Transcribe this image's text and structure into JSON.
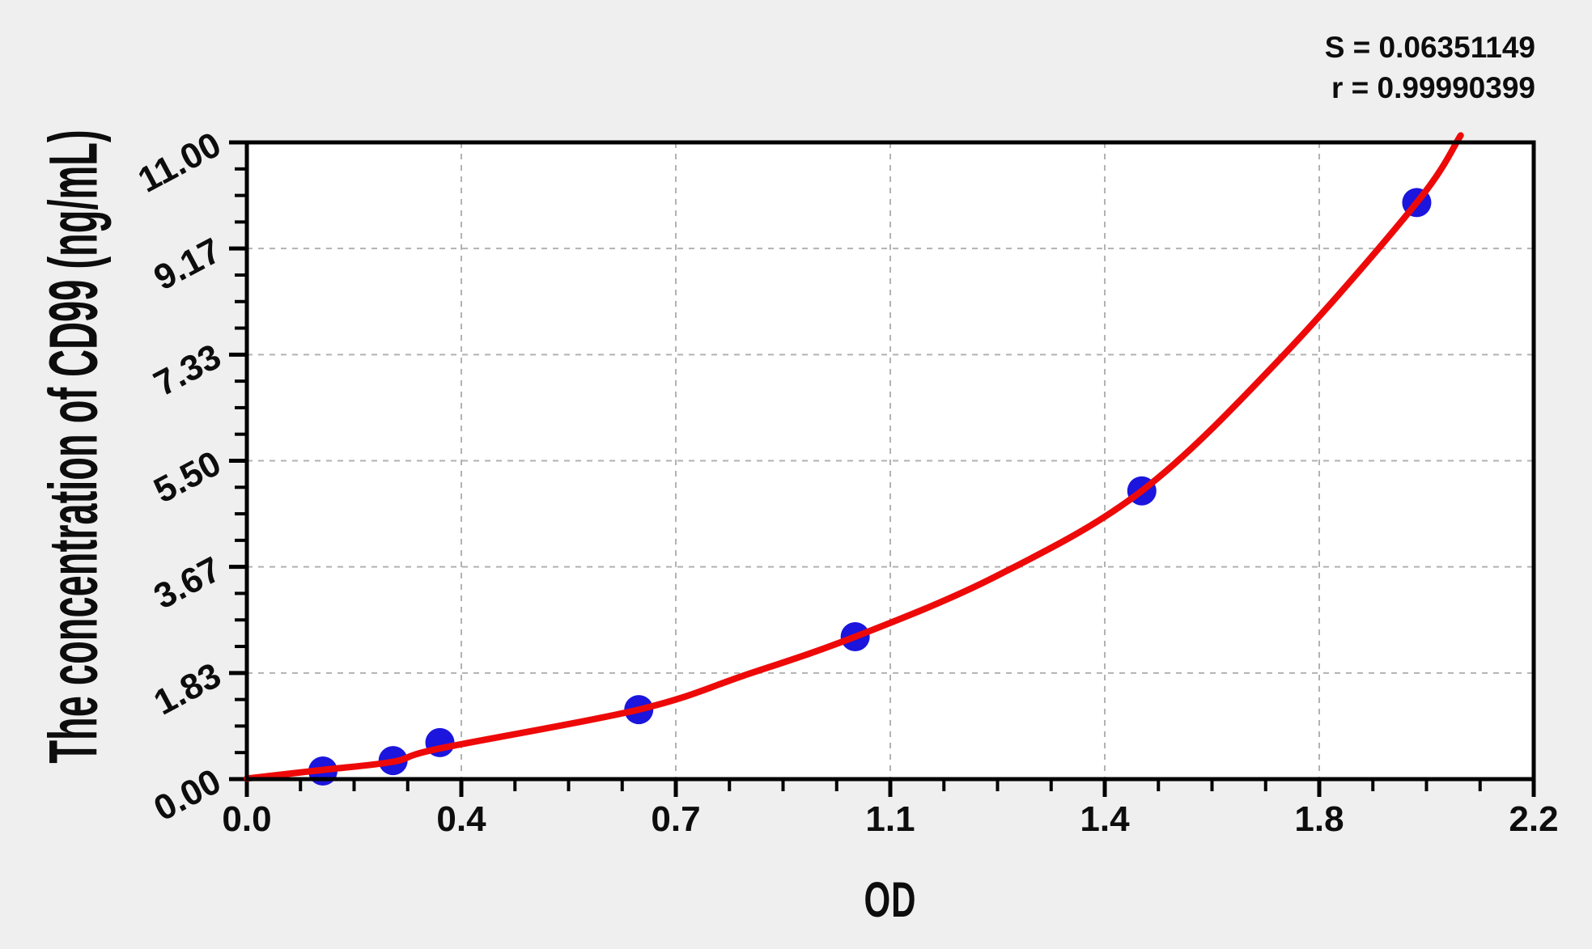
{
  "stats": {
    "s_line": "S = 0.06351149",
    "r_line": "r = 0.99990399"
  },
  "chart_data": {
    "type": "scatter",
    "title": "",
    "xlabel": "OD",
    "ylabel": "The concentration of CD99 (ng/mL)",
    "x_range": [
      0,
      2.2
    ],
    "y_range": [
      0,
      11
    ],
    "x_major_ticks": [
      0,
      0.36667,
      0.73333,
      1.1,
      1.46667,
      1.83333,
      2.2
    ],
    "x_tick_labels": [
      "0.0",
      "0.4",
      "0.7",
      "1.1",
      "1.4",
      "1.8",
      "2.2"
    ],
    "y_major_ticks": [
      0,
      1.83333,
      3.66667,
      5.5,
      7.33333,
      9.16667,
      11
    ],
    "y_tick_labels": [
      "0.00",
      "1.83",
      "3.67",
      "5.50",
      "7.33",
      "9.17",
      "11.00"
    ],
    "minor_divisions": 4,
    "grid": {
      "style": "dashed",
      "on_major_ticks": true
    },
    "legend": "none",
    "series": [
      {
        "name": "standard-points",
        "type": "scatter",
        "points": [
          {
            "od": 0.13,
            "conc": 0.14
          },
          {
            "od": 0.25,
            "conc": 0.32
          },
          {
            "od": 0.33,
            "conc": 0.63
          },
          {
            "od": 0.67,
            "conc": 1.2
          },
          {
            "od": 1.04,
            "conc": 2.46
          },
          {
            "od": 1.53,
            "conc": 4.98
          },
          {
            "od": 2.0,
            "conc": 9.96
          }
        ]
      },
      {
        "name": "fit-curve",
        "type": "line",
        "points": [
          [
            0,
            0.01
          ],
          [
            0.13,
            0.16
          ],
          [
            0.25,
            0.3
          ],
          [
            0.33,
            0.53
          ],
          [
            0.67,
            1.2
          ],
          [
            0.85,
            1.79
          ],
          [
            1.04,
            2.46
          ],
          [
            1.28,
            3.5
          ],
          [
            1.53,
            4.98
          ],
          [
            1.77,
            7.3
          ],
          [
            2.0,
            9.96
          ],
          [
            2.075,
            11.12
          ]
        ]
      }
    ],
    "regression": {
      "S": 0.06351149,
      "r": 0.99990399
    }
  },
  "colors": {
    "background": "#efefef",
    "plot_background": "#ffffff",
    "axis": "#000000",
    "grid": "#b2b2b2",
    "curve": "#ee0909",
    "point": "#1b15dd",
    "text": "#0d0d0d"
  }
}
